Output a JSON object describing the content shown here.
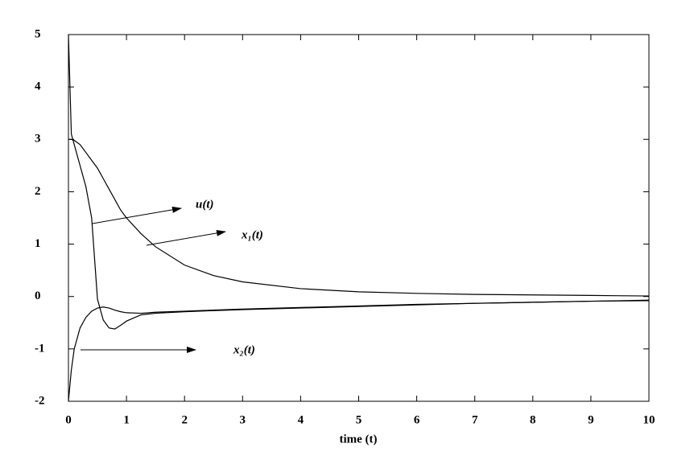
{
  "chart_data": {
    "type": "line",
    "xlabel": "time (t)",
    "x": [
      0,
      0.05,
      0.1,
      0.2,
      0.3,
      0.4,
      0.5,
      0.6,
      0.7,
      0.8,
      0.9,
      1,
      1.25,
      1.5,
      2,
      2.5,
      3,
      4,
      5,
      6,
      7,
      8,
      9,
      10
    ],
    "series": [
      {
        "name": "u(t)",
        "color": "#000000",
        "values": [
          5,
          3.1,
          2.9,
          2.5,
          2.1,
          1.5,
          -0.05,
          -0.45,
          -0.6,
          -0.62,
          -0.55,
          -0.47,
          -0.35,
          -0.32,
          -0.29,
          -0.27,
          -0.25,
          -0.22,
          -0.19,
          -0.16,
          -0.13,
          -0.11,
          -0.09,
          -0.08
        ]
      },
      {
        "name": "x₁(t)",
        "color": "#000000",
        "values": [
          3,
          3,
          2.98,
          2.9,
          2.75,
          2.6,
          2.45,
          2.25,
          2.05,
          1.85,
          1.65,
          1.5,
          1.2,
          0.95,
          0.6,
          0.4,
          0.28,
          0.15,
          0.09,
          0.06,
          0.04,
          0.03,
          0.02,
          0.01
        ]
      },
      {
        "name": "x₂(t)",
        "color": "#000000",
        "values": [
          -2,
          -1.4,
          -1.0,
          -0.6,
          -0.4,
          -0.28,
          -0.22,
          -0.2,
          -0.22,
          -0.26,
          -0.29,
          -0.31,
          -0.32,
          -0.3,
          -0.28,
          -0.26,
          -0.24,
          -0.21,
          -0.18,
          -0.15,
          -0.13,
          -0.11,
          -0.09,
          -0.07
        ]
      }
    ],
    "xlim": [
      0,
      10
    ],
    "xticks": [
      0,
      1,
      2,
      3,
      4,
      5,
      6,
      7,
      8,
      9,
      10
    ],
    "ylim": [
      -2,
      5
    ],
    "yticks": [
      -2,
      -1,
      0,
      1,
      2,
      3,
      4,
      5
    ]
  }
}
